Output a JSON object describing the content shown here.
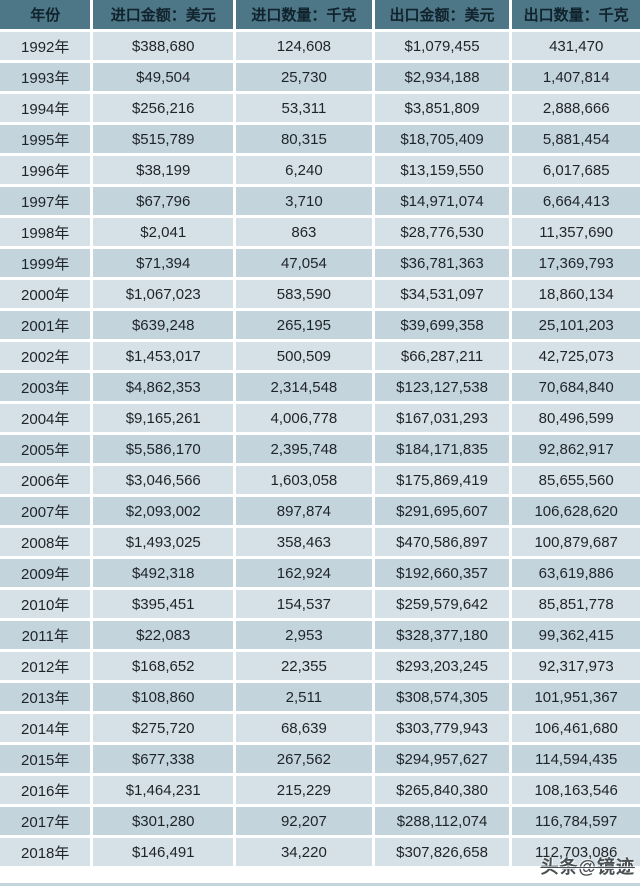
{
  "colors": {
    "header_bg": "#4d7686",
    "header_text": "#10222c",
    "row_light": "#d6e1e7",
    "row_dark": "#c3d4dd",
    "cell_text": "#1f2429"
  },
  "watermark": {
    "text": "头条@镜迹"
  },
  "chart_data": {
    "type": "table",
    "title": "",
    "columns": [
      "年份",
      "进口金额：美元",
      "进口数量：千克",
      "出口金额：美元",
      "出口数量：千克"
    ],
    "rows": [
      [
        "1992年",
        "$388,680",
        "124,608",
        "$1,079,455",
        "431,470"
      ],
      [
        "1993年",
        "$49,504",
        "25,730",
        "$2,934,188",
        "1,407,814"
      ],
      [
        "1994年",
        "$256,216",
        "53,311",
        "$3,851,809",
        "2,888,666"
      ],
      [
        "1995年",
        "$515,789",
        "80,315",
        "$18,705,409",
        "5,881,454"
      ],
      [
        "1996年",
        "$38,199",
        "6,240",
        "$13,159,550",
        "6,017,685"
      ],
      [
        "1997年",
        "$67,796",
        "3,710",
        "$14,971,074",
        "6,664,413"
      ],
      [
        "1998年",
        "$2,041",
        "863",
        "$28,776,530",
        "11,357,690"
      ],
      [
        "1999年",
        "$71,394",
        "47,054",
        "$36,781,363",
        "17,369,793"
      ],
      [
        "2000年",
        "$1,067,023",
        "583,590",
        "$34,531,097",
        "18,860,134"
      ],
      [
        "2001年",
        "$639,248",
        "265,195",
        "$39,699,358",
        "25,101,203"
      ],
      [
        "2002年",
        "$1,453,017",
        "500,509",
        "$66,287,211",
        "42,725,073"
      ],
      [
        "2003年",
        "$4,862,353",
        "2,314,548",
        "$123,127,538",
        "70,684,840"
      ],
      [
        "2004年",
        "$9,165,261",
        "4,006,778",
        "$167,031,293",
        "80,496,599"
      ],
      [
        "2005年",
        "$5,586,170",
        "2,395,748",
        "$184,171,835",
        "92,862,917"
      ],
      [
        "2006年",
        "$3,046,566",
        "1,603,058",
        "$175,869,419",
        "85,655,560"
      ],
      [
        "2007年",
        "$2,093,002",
        "897,874",
        "$291,695,607",
        "106,628,620"
      ],
      [
        "2008年",
        "$1,493,025",
        "358,463",
        "$470,586,897",
        "100,879,687"
      ],
      [
        "2009年",
        "$492,318",
        "162,924",
        "$192,660,357",
        "63,619,886"
      ],
      [
        "2010年",
        "$395,451",
        "154,537",
        "$259,579,642",
        "85,851,778"
      ],
      [
        "2011年",
        "$22,083",
        "2,953",
        "$328,377,180",
        "99,362,415"
      ],
      [
        "2012年",
        "$168,652",
        "22,355",
        "$293,203,245",
        "92,317,973"
      ],
      [
        "2013年",
        "$108,860",
        "2,511",
        "$308,574,305",
        "101,951,367"
      ],
      [
        "2014年",
        "$275,720",
        "68,639",
        "$303,779,943",
        "106,461,680"
      ],
      [
        "2015年",
        "$677,338",
        "267,562",
        "$294,957,627",
        "114,594,435"
      ],
      [
        "2016年",
        "$1,464,231",
        "215,229",
        "$265,840,380",
        "108,163,546"
      ],
      [
        "2017年",
        "$301,280",
        "92,207",
        "$288,112,074",
        "116,784,597"
      ],
      [
        "2018年",
        "$146,491",
        "34,220",
        "$307,826,658",
        "112,703,086"
      ]
    ]
  }
}
